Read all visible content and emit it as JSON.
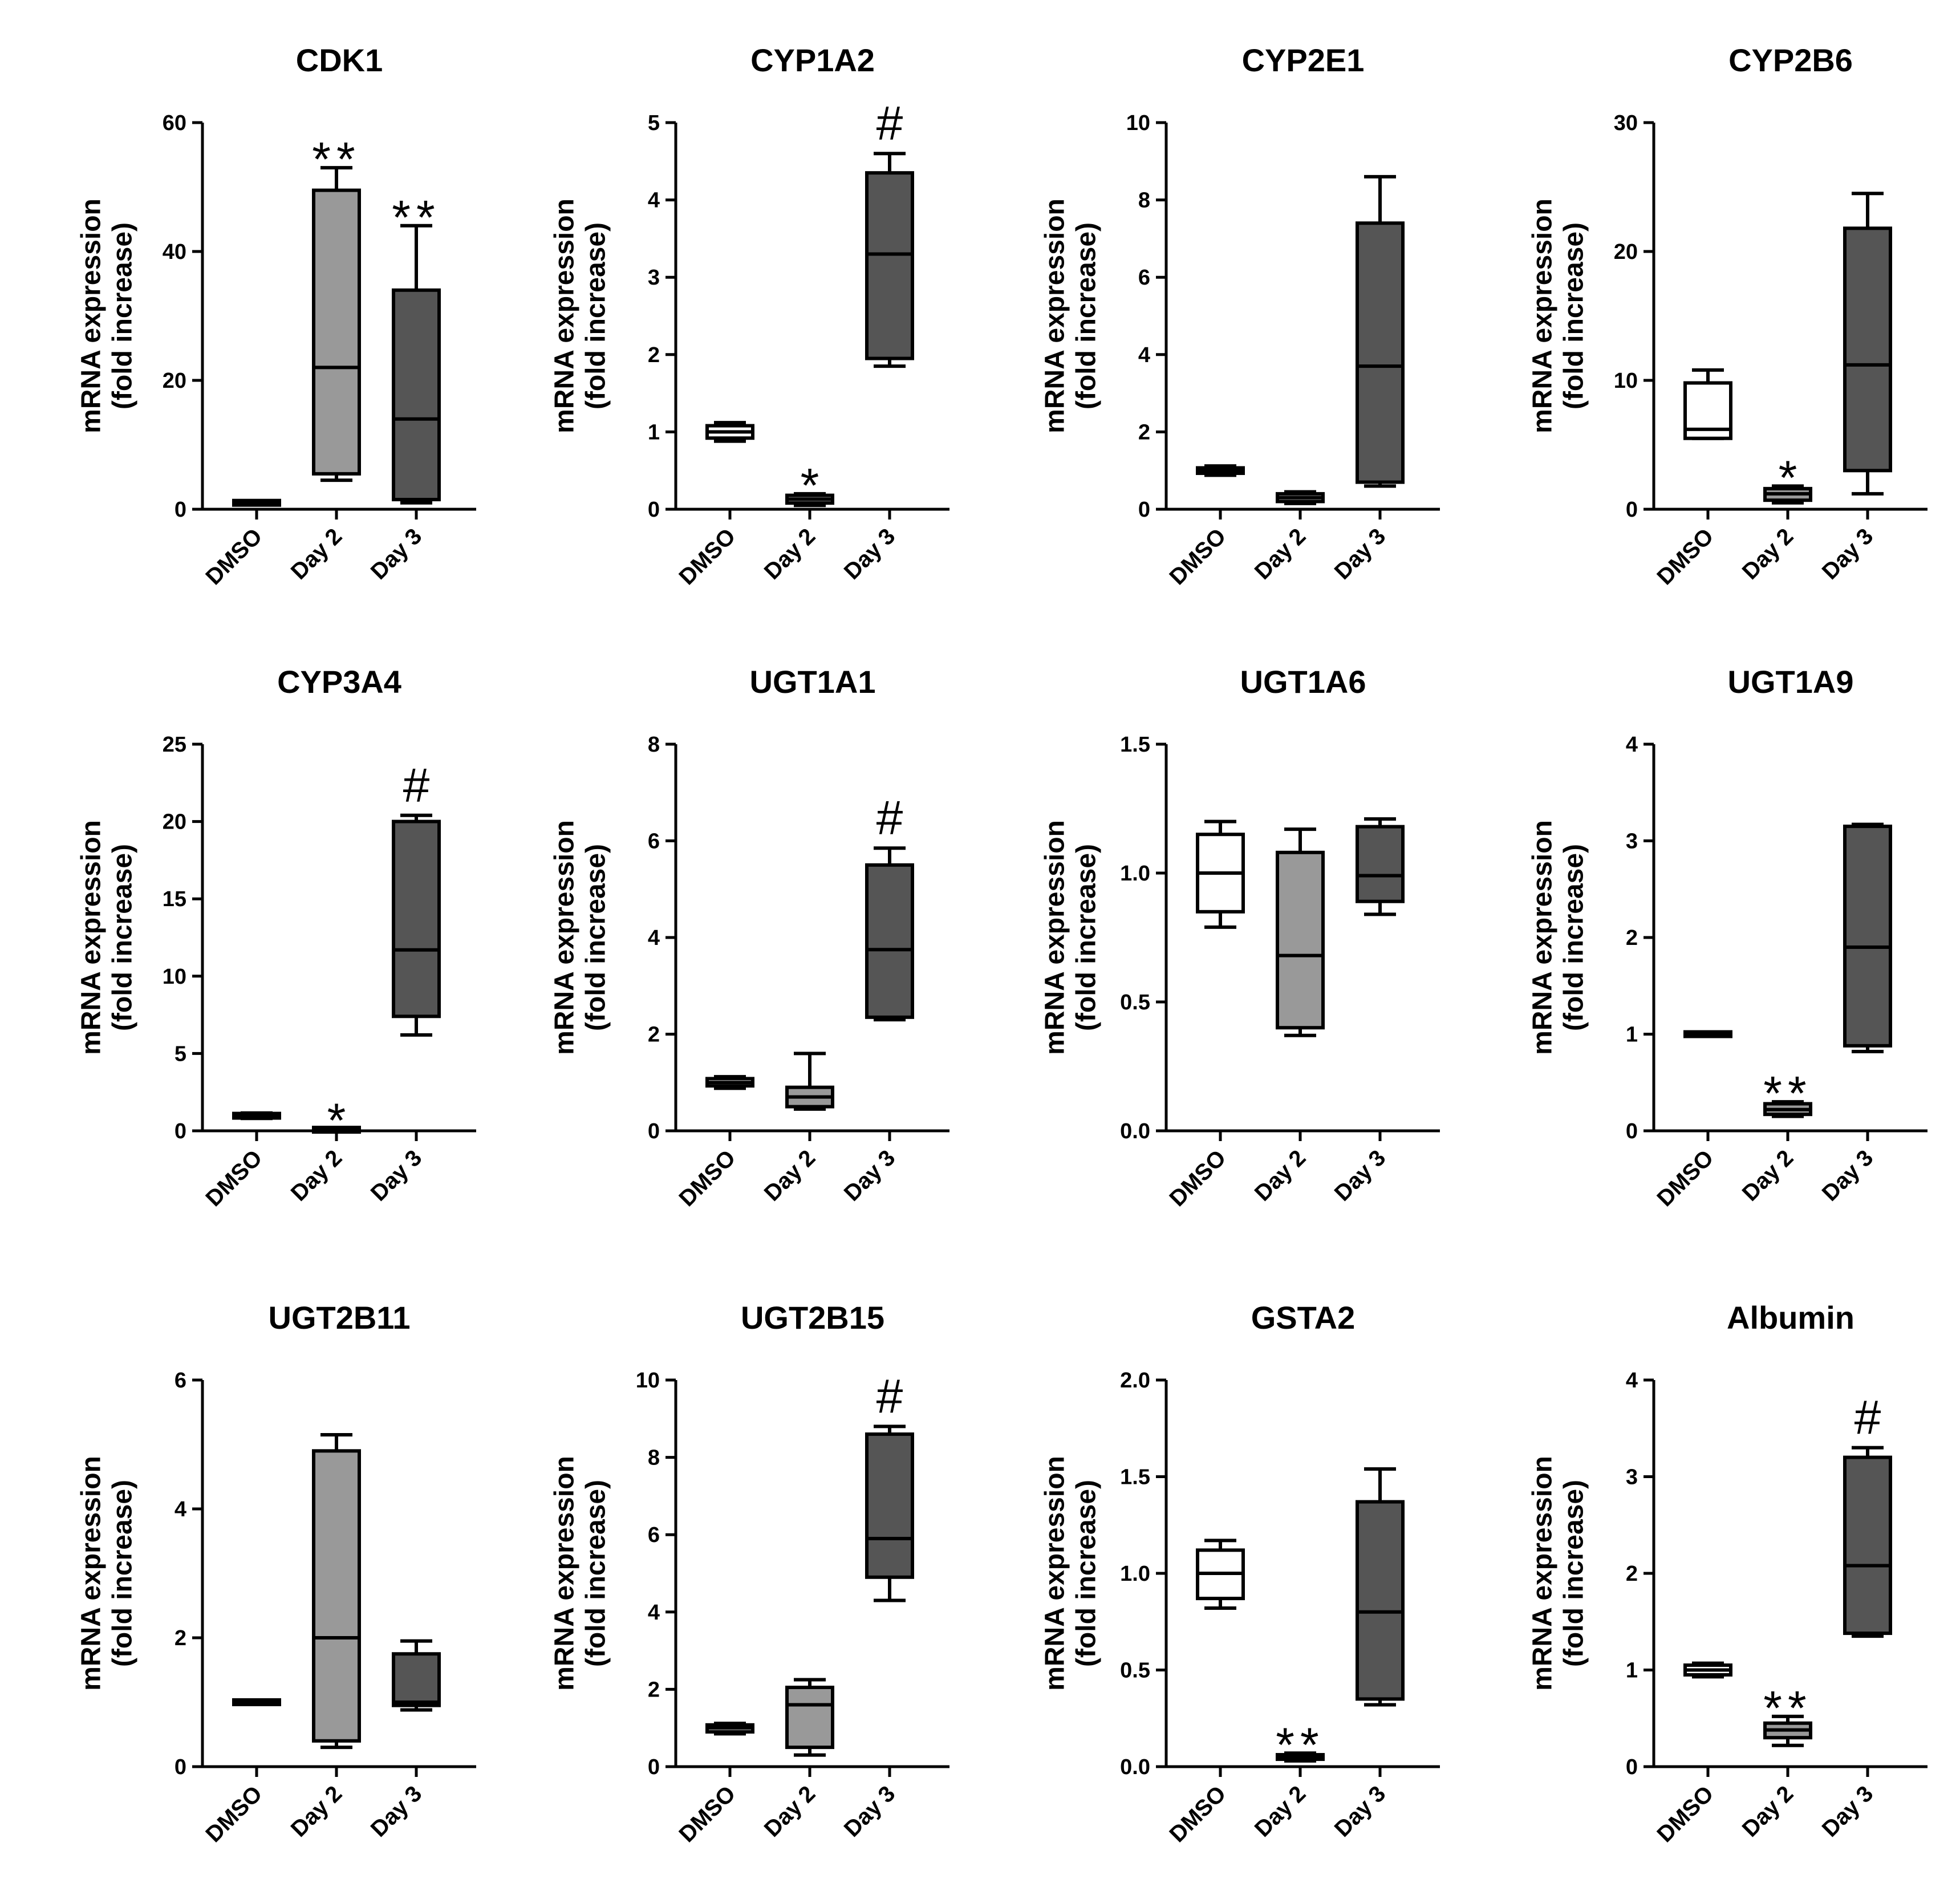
{
  "chart_data": [
    {
      "type": "box",
      "title": "CDK1",
      "ylabel_1": "mRNA expression",
      "ylabel_2": "(fold increase)",
      "ylim": [
        0,
        60
      ],
      "yticks": [
        0,
        20,
        40,
        60
      ],
      "yticklabels": [
        "0",
        "20",
        "40",
        "60"
      ],
      "categories": [
        "DMSO",
        "Day 2",
        "Day 3"
      ],
      "fills": [
        "#ffffff",
        "#999999",
        "#555555"
      ],
      "series": [
        {
          "name": "DMSO",
          "min": 0.8,
          "q1": 0.9,
          "median": 1.0,
          "q3": 1.1,
          "max": 1.2,
          "sig": ""
        },
        {
          "name": "Day 2",
          "min": 4.5,
          "q1": 5.5,
          "median": 22,
          "q3": 49.5,
          "max": 53,
          "sig": "**"
        },
        {
          "name": "Day 3",
          "min": 1,
          "q1": 1.5,
          "median": 14,
          "q3": 34,
          "max": 44,
          "sig": "**"
        }
      ]
    },
    {
      "type": "box",
      "title": "CYP1A2",
      "ylabel_1": "mRNA expression",
      "ylabel_2": "(fold increase)",
      "ylim": [
        0,
        5
      ],
      "yticks": [
        0,
        1,
        2,
        3,
        4,
        5
      ],
      "yticklabels": [
        "0",
        "1",
        "2",
        "3",
        "4",
        "5"
      ],
      "categories": [
        "DMSO",
        "Day 2",
        "Day 3"
      ],
      "fills": [
        "#ffffff",
        "#999999",
        "#555555"
      ],
      "series": [
        {
          "name": "DMSO",
          "min": 0.88,
          "q1": 0.92,
          "median": 1.0,
          "q3": 1.08,
          "max": 1.12,
          "sig": ""
        },
        {
          "name": "Day 2",
          "min": 0.05,
          "q1": 0.08,
          "median": 0.13,
          "q3": 0.18,
          "max": 0.2,
          "sig": "*"
        },
        {
          "name": "Day 3",
          "min": 1.85,
          "q1": 1.95,
          "median": 3.3,
          "q3": 4.35,
          "max": 4.6,
          "sig": "#"
        }
      ]
    },
    {
      "type": "box",
      "title": "CYP2E1",
      "ylabel_1": "mRNA expression",
      "ylabel_2": "(fold increase)",
      "ylim": [
        0,
        10
      ],
      "yticks": [
        0,
        2,
        4,
        6,
        8,
        10
      ],
      "yticklabels": [
        "0",
        "2",
        "4",
        "6",
        "8",
        "10"
      ],
      "categories": [
        "DMSO",
        "Day 2",
        "Day 3"
      ],
      "fills": [
        "#ffffff",
        "#999999",
        "#555555"
      ],
      "series": [
        {
          "name": "DMSO",
          "min": 0.88,
          "q1": 0.93,
          "median": 1.0,
          "q3": 1.07,
          "max": 1.12,
          "sig": ""
        },
        {
          "name": "Day 2",
          "min": 0.15,
          "q1": 0.2,
          "median": 0.3,
          "q3": 0.4,
          "max": 0.45,
          "sig": ""
        },
        {
          "name": "Day 3",
          "min": 0.6,
          "q1": 0.7,
          "median": 3.7,
          "q3": 7.4,
          "max": 8.6,
          "sig": ""
        }
      ]
    },
    {
      "type": "box",
      "title": "CYP2B6",
      "ylabel_1": "mRNA expression",
      "ylabel_2": "(fold increase)",
      "ylim": [
        0,
        30
      ],
      "yticks": [
        0,
        10,
        20,
        30
      ],
      "yticklabels": [
        "0",
        "10",
        "20",
        "30"
      ],
      "categories": [
        "DMSO",
        "Day 2",
        "Day 3"
      ],
      "fills": [
        "#ffffff",
        "#999999",
        "#555555"
      ],
      "series": [
        {
          "name": "DMSO",
          "min": 5.5,
          "q1": 5.5,
          "median": 6.2,
          "q3": 9.8,
          "max": 10.8,
          "sig": ""
        },
        {
          "name": "Day 2",
          "min": 0.5,
          "q1": 0.7,
          "median": 1.2,
          "q3": 1.6,
          "max": 1.8,
          "sig": "*"
        },
        {
          "name": "Day 3",
          "min": 1.2,
          "q1": 3,
          "median": 11.2,
          "q3": 21.8,
          "max": 24.5,
          "sig": ""
        }
      ]
    },
    {
      "type": "box",
      "title": "CYP3A4",
      "ylabel_1": "mRNA expression",
      "ylabel_2": "(fold increase)",
      "ylim": [
        0,
        25
      ],
      "yticks": [
        0,
        5,
        10,
        15,
        20,
        25
      ],
      "yticklabels": [
        "0",
        "5",
        "10",
        "15",
        "20",
        "25"
      ],
      "categories": [
        "DMSO",
        "Day 2",
        "Day 3"
      ],
      "fills": [
        "#ffffff",
        "#999999",
        "#555555"
      ],
      "series": [
        {
          "name": "DMSO",
          "min": 0.8,
          "q1": 0.85,
          "median": 1.0,
          "q3": 1.1,
          "max": 1.15,
          "sig": ""
        },
        {
          "name": "Day 2",
          "min": 0.02,
          "q1": 0.04,
          "median": 0.07,
          "q3": 0.1,
          "max": 0.12,
          "sig": "*"
        },
        {
          "name": "Day 3",
          "min": 6.2,
          "q1": 7.4,
          "median": 11.7,
          "q3": 20,
          "max": 20.4,
          "sig": "#"
        }
      ]
    },
    {
      "type": "box",
      "title": "UGT1A1",
      "ylabel_1": "mRNA expression",
      "ylabel_2": "(fold increase)",
      "ylim": [
        0,
        8
      ],
      "yticks": [
        0,
        2,
        4,
        6,
        8
      ],
      "yticklabels": [
        "0",
        "2",
        "4",
        "6",
        "8"
      ],
      "categories": [
        "DMSO",
        "Day 2",
        "Day 3"
      ],
      "fills": [
        "#ffffff",
        "#999999",
        "#555555"
      ],
      "series": [
        {
          "name": "DMSO",
          "min": 0.88,
          "q1": 0.93,
          "median": 1.0,
          "q3": 1.08,
          "max": 1.12,
          "sig": ""
        },
        {
          "name": "Day 2",
          "min": 0.45,
          "q1": 0.5,
          "median": 0.7,
          "q3": 0.9,
          "max": 1.6,
          "sig": ""
        },
        {
          "name": "Day 3",
          "min": 2.3,
          "q1": 2.35,
          "median": 3.75,
          "q3": 5.5,
          "max": 5.85,
          "sig": "#"
        }
      ]
    },
    {
      "type": "box",
      "title": "UGT1A6",
      "ylabel_1": "mRNA expression",
      "ylabel_2": "(fold increase)",
      "ylim": [
        0,
        1.5
      ],
      "yticks": [
        0,
        0.5,
        1.0,
        1.5
      ],
      "yticklabels": [
        "0.0",
        "0.5",
        "1.0",
        "1.5"
      ],
      "categories": [
        "DMSO",
        "Day 2",
        "Day 3"
      ],
      "fills": [
        "#ffffff",
        "#999999",
        "#555555"
      ],
      "series": [
        {
          "name": "DMSO",
          "min": 0.79,
          "q1": 0.85,
          "median": 1.0,
          "q3": 1.15,
          "max": 1.2,
          "sig": ""
        },
        {
          "name": "Day 2",
          "min": 0.37,
          "q1": 0.4,
          "median": 0.68,
          "q3": 1.08,
          "max": 1.17,
          "sig": ""
        },
        {
          "name": "Day 3",
          "min": 0.84,
          "q1": 0.89,
          "median": 0.99,
          "q3": 1.18,
          "max": 1.21,
          "sig": ""
        }
      ]
    },
    {
      "type": "box",
      "title": "UGT1A9",
      "ylabel_1": "mRNA expression",
      "ylabel_2": "(fold increase)",
      "ylim": [
        0,
        4
      ],
      "yticks": [
        0,
        1,
        2,
        3,
        4
      ],
      "yticklabels": [
        "0",
        "1",
        "2",
        "3",
        "4"
      ],
      "categories": [
        "DMSO",
        "Day 2",
        "Day 3"
      ],
      "fills": [
        "#ffffff",
        "#999999",
        "#555555"
      ],
      "series": [
        {
          "name": "DMSO",
          "min": 0.98,
          "q1": 0.99,
          "median": 1.0,
          "q3": 1.01,
          "max": 1.02,
          "sig": ""
        },
        {
          "name": "Day 2",
          "min": 0.15,
          "q1": 0.17,
          "median": 0.22,
          "q3": 0.28,
          "max": 0.3,
          "sig": "**"
        },
        {
          "name": "Day 3",
          "min": 0.82,
          "q1": 0.88,
          "median": 1.9,
          "q3": 3.15,
          "max": 3.17,
          "sig": ""
        }
      ]
    },
    {
      "type": "box",
      "title": "UGT2B11",
      "ylabel_1": "mRNA expression",
      "ylabel_2": "(fold increase)",
      "ylim": [
        0,
        6
      ],
      "yticks": [
        0,
        2,
        4,
        6
      ],
      "yticklabels": [
        "0",
        "2",
        "4",
        "6"
      ],
      "categories": [
        "DMSO",
        "Day 2",
        "Day 3"
      ],
      "fills": [
        "#ffffff",
        "#999999",
        "#555555"
      ],
      "series": [
        {
          "name": "DMSO",
          "min": 0.98,
          "q1": 0.99,
          "median": 1.0,
          "q3": 1.01,
          "max": 1.02,
          "sig": ""
        },
        {
          "name": "Day 2",
          "min": 0.3,
          "q1": 0.4,
          "median": 2.0,
          "q3": 4.9,
          "max": 5.15,
          "sig": ""
        },
        {
          "name": "Day 3",
          "min": 0.88,
          "q1": 0.95,
          "median": 1.0,
          "q3": 1.75,
          "max": 1.95,
          "sig": ""
        }
      ]
    },
    {
      "type": "box",
      "title": "UGT2B15",
      "ylabel_1": "mRNA expression",
      "ylabel_2": "(fold increase)",
      "ylim": [
        0,
        10
      ],
      "yticks": [
        0,
        2,
        4,
        6,
        8,
        10
      ],
      "yticklabels": [
        "0",
        "2",
        "4",
        "6",
        "8",
        "10"
      ],
      "categories": [
        "DMSO",
        "Day 2",
        "Day 3"
      ],
      "fills": [
        "#ffffff",
        "#999999",
        "#555555"
      ],
      "series": [
        {
          "name": "DMSO",
          "min": 0.85,
          "q1": 0.9,
          "median": 1.0,
          "q3": 1.08,
          "max": 1.12,
          "sig": ""
        },
        {
          "name": "Day 2",
          "min": 0.3,
          "q1": 0.5,
          "median": 1.6,
          "q3": 2.05,
          "max": 2.25,
          "sig": ""
        },
        {
          "name": "Day 3",
          "min": 4.3,
          "q1": 4.9,
          "median": 5.9,
          "q3": 8.6,
          "max": 8.8,
          "sig": "#"
        }
      ]
    },
    {
      "type": "box",
      "title": "GSTA2",
      "ylabel_1": "mRNA expression",
      "ylabel_2": "(fold increase)",
      "ylim": [
        0,
        2.0
      ],
      "yticks": [
        0,
        0.5,
        1.0,
        1.5,
        2.0
      ],
      "yticklabels": [
        "0.0",
        "0.5",
        "1.0",
        "1.5",
        "2.0"
      ],
      "categories": [
        "DMSO",
        "Day 2",
        "Day 3"
      ],
      "fills": [
        "#ffffff",
        "#999999",
        "#555555"
      ],
      "series": [
        {
          "name": "DMSO",
          "min": 0.82,
          "q1": 0.87,
          "median": 1.0,
          "q3": 1.12,
          "max": 1.17,
          "sig": ""
        },
        {
          "name": "Day 2",
          "min": 0.03,
          "q1": 0.04,
          "median": 0.05,
          "q3": 0.06,
          "max": 0.07,
          "sig": "**"
        },
        {
          "name": "Day 3",
          "min": 0.32,
          "q1": 0.35,
          "median": 0.8,
          "q3": 1.37,
          "max": 1.54,
          "sig": ""
        }
      ]
    },
    {
      "type": "box",
      "title": "Albumin",
      "ylabel_1": "mRNA expression",
      "ylabel_2": "(fold increase)",
      "ylim": [
        0,
        4
      ],
      "yticks": [
        0,
        1,
        2,
        3,
        4
      ],
      "yticklabels": [
        "0",
        "1",
        "2",
        "3",
        "4"
      ],
      "categories": [
        "DMSO",
        "Day 2",
        "Day 3"
      ],
      "fills": [
        "#ffffff",
        "#999999",
        "#555555"
      ],
      "series": [
        {
          "name": "DMSO",
          "min": 0.93,
          "q1": 0.95,
          "median": 1.0,
          "q3": 1.05,
          "max": 1.07,
          "sig": ""
        },
        {
          "name": "Day 2",
          "min": 0.22,
          "q1": 0.3,
          "median": 0.38,
          "q3": 0.45,
          "max": 0.52,
          "sig": "**"
        },
        {
          "name": "Day 3",
          "min": 1.35,
          "q1": 1.38,
          "median": 2.08,
          "q3": 3.2,
          "max": 3.3,
          "sig": "#"
        }
      ]
    }
  ]
}
